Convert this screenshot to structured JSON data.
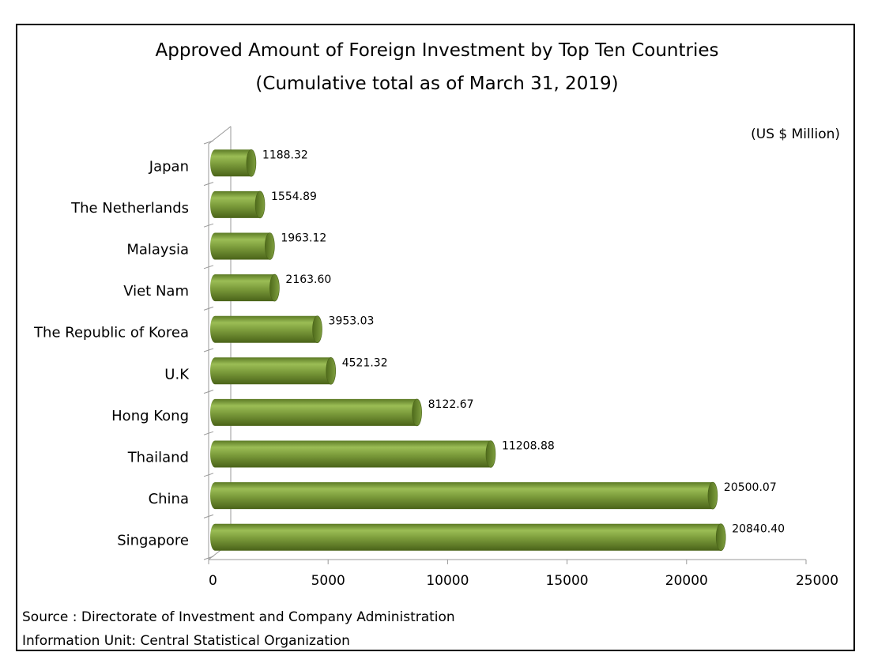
{
  "chart_data": {
    "type": "bar",
    "orientation": "horizontal",
    "title": "Approved Amount of Foreign Investment by Top Ten Countries",
    "subtitle": "(Cumulative total as of March 31, 2019)",
    "unit_label": "(US $ Million)",
    "categories": [
      "Japan",
      "The Netherlands",
      "Malaysia",
      "Viet Nam",
      "The Republic of Korea",
      "U.K",
      "Hong Kong",
      "Thailand",
      "China",
      "Singapore"
    ],
    "values": [
      1188.32,
      1554.89,
      1963.12,
      2163.6,
      3953.03,
      4521.32,
      8122.67,
      11208.88,
      20500.07,
      20840.4
    ],
    "value_labels": [
      "1188.32",
      "1554.89",
      "1963.12",
      "2163.60",
      "3953.03",
      "4521.32",
      "8122.67",
      "11208.88",
      "20500.07",
      "20840.40"
    ],
    "xlim": [
      0,
      25000
    ],
    "xticks": [
      "0",
      "5000",
      "10000",
      "15000",
      "20000",
      "25000"
    ],
    "bar_color": "#77933c",
    "grid": false,
    "legend": "none"
  },
  "footer": {
    "source": "Source : Directorate of Investment and Company Administration",
    "info_unit": "Information Unit:  Central Statistical Organization"
  }
}
